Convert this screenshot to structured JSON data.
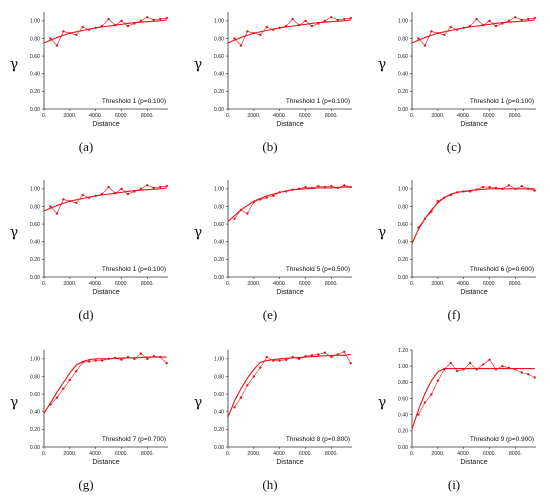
{
  "chart_data": [
    {
      "type": "line",
      "panel_label": "(a)",
      "xlabel": "Distance",
      "ylabel": "γ",
      "annotation": "Threshold 1 (p=0.100)",
      "xlim": [
        0,
        9600
      ],
      "ylim": [
        0,
        1.1
      ],
      "xticks": [
        "0.",
        "2000.",
        "4000.",
        "6000.",
        "8000."
      ],
      "yticks": [
        "0.00",
        "0.20",
        "0.40",
        "0.60",
        "0.80",
        "1.00"
      ],
      "series": [
        {
          "role": "points",
          "x": [
            500,
            1000,
            1500,
            2000,
            2500,
            3000,
            3500,
            4000,
            4500,
            5000,
            5500,
            6000,
            6500,
            7000,
            7500,
            8000,
            8500,
            9000,
            9500
          ],
          "y": [
            0.8,
            0.72,
            0.88,
            0.86,
            0.84,
            0.93,
            0.9,
            0.92,
            0.94,
            1.02,
            0.95,
            1.0,
            0.94,
            0.97,
            1.0,
            1.04,
            1.01,
            1.02,
            1.03
          ]
        },
        {
          "role": "model",
          "x": [
            0,
            1000,
            2000,
            3000,
            4000,
            5000,
            6000,
            7000,
            8000,
            9000,
            9500
          ],
          "y": [
            0.75,
            0.81,
            0.86,
            0.89,
            0.92,
            0.94,
            0.96,
            0.98,
            0.99,
            1.0,
            1.01
          ]
        }
      ]
    },
    {
      "type": "line",
      "panel_label": "(b)",
      "xlabel": "Distance",
      "ylabel": "γ",
      "annotation": "Threshold 1 (p=0.100)",
      "xlim": [
        0,
        9600
      ],
      "ylim": [
        0,
        1.1
      ],
      "xticks": [
        "0.",
        "2000.",
        "4000.",
        "6000.",
        "8000."
      ],
      "yticks": [
        "0.00",
        "0.20",
        "0.40",
        "0.60",
        "0.80",
        "1.00"
      ],
      "series": [
        {
          "role": "points",
          "x": [
            500,
            1000,
            1500,
            2000,
            2500,
            3000,
            3500,
            4000,
            4500,
            5000,
            5500,
            6000,
            6500,
            7000,
            7500,
            8000,
            8500,
            9000,
            9500
          ],
          "y": [
            0.8,
            0.72,
            0.88,
            0.86,
            0.84,
            0.93,
            0.9,
            0.92,
            0.94,
            1.02,
            0.95,
            1.0,
            0.94,
            0.97,
            1.0,
            1.04,
            1.01,
            1.02,
            1.03
          ]
        },
        {
          "role": "model",
          "x": [
            0,
            1000,
            2000,
            3000,
            4000,
            5000,
            6000,
            7000,
            8000,
            9000,
            9500
          ],
          "y": [
            0.75,
            0.81,
            0.86,
            0.89,
            0.92,
            0.94,
            0.96,
            0.98,
            0.99,
            1.0,
            1.01
          ]
        }
      ]
    },
    {
      "type": "line",
      "panel_label": "(c)",
      "xlabel": "Distance",
      "ylabel": "γ",
      "annotation": "Threshold 1 (p=0.100)",
      "xlim": [
        0,
        9600
      ],
      "ylim": [
        0,
        1.1
      ],
      "xticks": [
        "0.",
        "2000.",
        "4000.",
        "6000.",
        "8000."
      ],
      "yticks": [
        "0.00",
        "0.20",
        "0.40",
        "0.60",
        "0.80",
        "1.00"
      ],
      "series": [
        {
          "role": "points",
          "x": [
            500,
            1000,
            1500,
            2000,
            2500,
            3000,
            3500,
            4000,
            4500,
            5000,
            5500,
            6000,
            6500,
            7000,
            7500,
            8000,
            8500,
            9000,
            9500
          ],
          "y": [
            0.8,
            0.72,
            0.88,
            0.86,
            0.84,
            0.93,
            0.9,
            0.92,
            0.94,
            1.02,
            0.95,
            1.0,
            0.94,
            0.97,
            1.0,
            1.04,
            1.01,
            1.02,
            1.03
          ]
        },
        {
          "role": "model",
          "x": [
            0,
            1000,
            2000,
            3000,
            4000,
            5000,
            6000,
            7000,
            8000,
            9000,
            9500
          ],
          "y": [
            0.75,
            0.81,
            0.86,
            0.89,
            0.92,
            0.94,
            0.96,
            0.98,
            0.99,
            1.0,
            1.01
          ]
        }
      ]
    },
    {
      "type": "line",
      "panel_label": "(d)",
      "xlabel": "Distance",
      "ylabel": "γ",
      "annotation": "Threshold 1 (p=0.100)",
      "xlim": [
        0,
        9600
      ],
      "ylim": [
        0,
        1.1
      ],
      "xticks": [
        "0.",
        "2000.",
        "4000.",
        "6000.",
        "8000."
      ],
      "yticks": [
        "0.00",
        "0.20",
        "0.40",
        "0.60",
        "0.80",
        "1.00"
      ],
      "series": [
        {
          "role": "points",
          "x": [
            500,
            1000,
            1500,
            2000,
            2500,
            3000,
            3500,
            4000,
            4500,
            5000,
            5500,
            6000,
            6500,
            7000,
            7500,
            8000,
            8500,
            9000,
            9500
          ],
          "y": [
            0.8,
            0.72,
            0.88,
            0.86,
            0.84,
            0.93,
            0.9,
            0.92,
            0.94,
            1.02,
            0.95,
            1.0,
            0.94,
            0.97,
            1.0,
            1.04,
            1.01,
            1.02,
            1.03
          ]
        },
        {
          "role": "model",
          "x": [
            0,
            1000,
            2000,
            3000,
            4000,
            5000,
            6000,
            7000,
            8000,
            9000,
            9500
          ],
          "y": [
            0.75,
            0.81,
            0.86,
            0.89,
            0.92,
            0.94,
            0.96,
            0.98,
            0.99,
            1.0,
            1.01
          ]
        }
      ]
    },
    {
      "type": "line",
      "panel_label": "(e)",
      "xlabel": "Distance",
      "ylabel": "γ",
      "annotation": "Threshold 5 (p=0.500)",
      "xlim": [
        0,
        9600
      ],
      "ylim": [
        0,
        1.1
      ],
      "xticks": [
        "0.",
        "2000.",
        "4000.",
        "6000.",
        "8000."
      ],
      "yticks": [
        "0.00",
        "0.20",
        "0.40",
        "0.60",
        "0.80",
        "1.00"
      ],
      "series": [
        {
          "role": "points",
          "x": [
            500,
            1000,
            1500,
            2000,
            2500,
            3000,
            3500,
            4000,
            4500,
            5000,
            5500,
            6000,
            6500,
            7000,
            7500,
            8000,
            8500,
            9000,
            9500
          ],
          "y": [
            0.66,
            0.76,
            0.72,
            0.85,
            0.88,
            0.9,
            0.92,
            0.96,
            0.97,
            0.99,
            1.0,
            1.02,
            1.01,
            1.03,
            1.02,
            1.03,
            1.01,
            1.04,
            1.02
          ]
        },
        {
          "role": "model",
          "x": [
            0,
            1000,
            2000,
            3000,
            4000,
            5000,
            6000,
            7000,
            8000,
            9000,
            9500
          ],
          "y": [
            0.63,
            0.76,
            0.86,
            0.92,
            0.96,
            0.99,
            1.0,
            1.01,
            1.01,
            1.02,
            1.02
          ]
        }
      ]
    },
    {
      "type": "line",
      "panel_label": "(f)",
      "xlabel": "Distance",
      "ylabel": "γ",
      "annotation": "Threshold 6 (p=0.600)",
      "xlim": [
        0,
        9600
      ],
      "ylim": [
        0,
        1.1
      ],
      "xticks": [
        "0.",
        "2000.",
        "4000.",
        "6000.",
        "8000."
      ],
      "yticks": [
        "0.00",
        "0.20",
        "0.40",
        "0.60",
        "0.80",
        "1.00"
      ],
      "series": [
        {
          "role": "points",
          "x": [
            500,
            1000,
            1500,
            2000,
            2500,
            3000,
            3500,
            4000,
            4500,
            5000,
            5500,
            6000,
            6500,
            7000,
            7500,
            8000,
            8500,
            9000,
            9500
          ],
          "y": [
            0.56,
            0.66,
            0.74,
            0.86,
            0.9,
            0.93,
            0.96,
            0.97,
            0.97,
            0.99,
            1.02,
            1.02,
            1.01,
            1.0,
            1.04,
            1.0,
            1.03,
            1.0,
            0.98
          ]
        },
        {
          "role": "model",
          "x": [
            0,
            500,
            1000,
            1500,
            2000,
            2500,
            3000,
            3500,
            4000,
            5000,
            6000,
            7000,
            8000,
            9000,
            9500
          ],
          "y": [
            0.38,
            0.54,
            0.66,
            0.76,
            0.84,
            0.9,
            0.94,
            0.96,
            0.97,
            0.99,
            1.0,
            1.0,
            1.0,
            1.0,
            1.0
          ]
        }
      ]
    },
    {
      "type": "line",
      "panel_label": "(g)",
      "xlabel": "Distance",
      "ylabel": "γ",
      "annotation": "Threshold 7 (p=0.700)",
      "xlim": [
        0,
        9600
      ],
      "ylim": [
        0,
        1.1
      ],
      "xticks": [
        "0.",
        "2000.",
        "4000.",
        "6000.",
        "8000."
      ],
      "yticks": [
        "0.00",
        "0.20",
        "0.40",
        "0.60",
        "0.80",
        "1.00"
      ],
      "series": [
        {
          "role": "points",
          "x": [
            500,
            1000,
            1500,
            2000,
            2500,
            3000,
            3500,
            4000,
            4500,
            5000,
            5500,
            6000,
            6500,
            7000,
            7500,
            8000,
            8500,
            9000,
            9500
          ],
          "y": [
            0.48,
            0.56,
            0.66,
            0.76,
            0.86,
            0.96,
            0.97,
            0.98,
            0.98,
            1.0,
            1.01,
            0.99,
            1.02,
            1.0,
            1.06,
            1.0,
            1.03,
            1.02,
            0.95
          ]
        },
        {
          "role": "model",
          "x": [
            0,
            500,
            1000,
            1500,
            2000,
            2500,
            3000,
            3500,
            4000,
            5000,
            6000,
            7000,
            8000,
            9000,
            9500
          ],
          "y": [
            0.38,
            0.5,
            0.62,
            0.73,
            0.84,
            0.93,
            0.97,
            0.99,
            1.0,
            1.0,
            1.01,
            1.01,
            1.02,
            1.02,
            1.02
          ]
        }
      ]
    },
    {
      "type": "line",
      "panel_label": "(h)",
      "xlabel": "Distance",
      "ylabel": "γ",
      "annotation": "Threshold 8 (p=0.800)",
      "xlim": [
        0,
        9600
      ],
      "ylim": [
        0,
        1.1
      ],
      "xticks": [
        "0.",
        "2000.",
        "4000.",
        "6000.",
        "8000."
      ],
      "yticks": [
        "0.00",
        "0.20",
        "0.40",
        "0.60",
        "0.80",
        "1.00"
      ],
      "series": [
        {
          "role": "points",
          "x": [
            500,
            1000,
            1500,
            2000,
            2500,
            3000,
            3500,
            4000,
            4500,
            5000,
            5500,
            6000,
            6500,
            7000,
            7500,
            8000,
            8500,
            9000,
            9500
          ],
          "y": [
            0.45,
            0.56,
            0.7,
            0.8,
            0.9,
            1.02,
            0.98,
            0.98,
            0.99,
            1.02,
            1.0,
            1.03,
            1.04,
            1.05,
            1.07,
            1.02,
            1.05,
            1.08,
            0.95
          ]
        },
        {
          "role": "model",
          "x": [
            0,
            500,
            1000,
            1500,
            2000,
            2500,
            3000,
            3500,
            4000,
            5000,
            6000,
            7000,
            8000,
            9000,
            9500
          ],
          "y": [
            0.34,
            0.52,
            0.66,
            0.78,
            0.88,
            0.96,
            0.98,
            0.99,
            1.0,
            1.01,
            1.02,
            1.03,
            1.04,
            1.04,
            1.05
          ]
        }
      ]
    },
    {
      "type": "line",
      "panel_label": "(i)",
      "xlabel": "Distance",
      "ylabel": "γ",
      "annotation": "Threshold 9 (p=0.900)",
      "xlim": [
        0,
        9600
      ],
      "ylim": [
        0,
        1.2
      ],
      "xticks": [
        "0.",
        "2000.",
        "4000.",
        "6000.",
        "8000."
      ],
      "yticks": [
        "0.00",
        "0.20",
        "0.40",
        "0.60",
        "0.80",
        "1.00",
        "1.20"
      ],
      "series": [
        {
          "role": "points",
          "x": [
            500,
            1000,
            1500,
            2000,
            2500,
            3000,
            3500,
            4000,
            4500,
            5000,
            5500,
            6000,
            6500,
            7000,
            7500,
            8000,
            8500,
            9000,
            9500
          ],
          "y": [
            0.4,
            0.55,
            0.65,
            0.82,
            0.96,
            1.04,
            0.94,
            0.96,
            1.04,
            0.96,
            1.02,
            1.08,
            0.96,
            1.0,
            0.98,
            0.96,
            0.92,
            0.9,
            0.86
          ]
        },
        {
          "role": "model",
          "x": [
            0,
            500,
            1000,
            1500,
            2000,
            2500,
            3000,
            4000,
            5000,
            6000,
            7000,
            8000,
            9000,
            9500
          ],
          "y": [
            0.22,
            0.46,
            0.66,
            0.82,
            0.93,
            0.97,
            0.97,
            0.97,
            0.97,
            0.97,
            0.97,
            0.97,
            0.97,
            0.97
          ]
        }
      ]
    }
  ]
}
